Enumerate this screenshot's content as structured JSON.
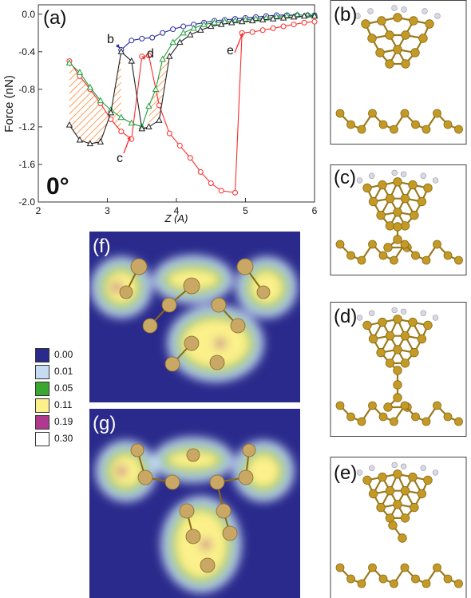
{
  "panel_labels": {
    "a": "(a)",
    "b": "(b)",
    "c": "(c)",
    "d": "(d)",
    "e": "(e)",
    "f": "(f)",
    "g": "(g)"
  },
  "angle_label": "0°",
  "point_labels": {
    "b": "b",
    "c": "c",
    "d": "d",
    "e": "e"
  },
  "chart_data": {
    "type": "line",
    "xlabel": "Z (A)",
    "ylabel": "Force (nN)",
    "xlim": [
      2,
      6
    ],
    "ylim": [
      -2.0,
      0.1
    ],
    "x_ticks": [
      "2",
      "3",
      "4",
      "5",
      "6"
    ],
    "y_ticks": [
      "0.0",
      "-0.4",
      "-0.8",
      "-1.2",
      "-1.6",
      "-2.0"
    ],
    "series": [
      {
        "color": "#2b2ba8",
        "marker": "circle",
        "x": [
          3.2,
          3.35,
          3.5,
          3.65,
          3.8,
          3.95,
          4.1,
          4.25,
          4.4,
          4.55,
          4.7,
          4.85,
          5.0,
          5.15,
          5.3,
          5.45,
          5.6,
          5.75,
          5.9,
          6.0
        ],
        "y": [
          -0.38,
          -0.28,
          -0.26,
          -0.25,
          -0.2,
          -0.16,
          -0.13,
          -0.11,
          -0.09,
          -0.07,
          -0.06,
          -0.05,
          -0.04,
          -0.03,
          -0.02,
          -0.01,
          -0.01,
          -0.01,
          -0.01,
          -0.01
        ]
      },
      {
        "color": "#ff2a2a",
        "marker": "circle",
        "x": [
          2.45,
          2.6,
          2.75,
          2.9,
          3.05,
          3.2,
          3.35,
          3.5,
          3.6,
          3.75,
          3.9,
          4.05,
          4.2,
          4.35,
          4.5,
          4.65,
          4.85,
          4.95,
          5.1,
          5.25,
          5.4,
          5.55,
          5.7,
          5.85,
          6.0
        ],
        "y": [
          -0.5,
          -0.66,
          -0.8,
          -0.95,
          -1.12,
          -1.25,
          -1.33,
          -0.45,
          -0.44,
          -0.97,
          -1.27,
          -1.4,
          -1.53,
          -1.68,
          -1.8,
          -1.88,
          -1.9,
          -0.2,
          -0.19,
          -0.17,
          -0.15,
          -0.13,
          -0.11,
          -0.09,
          -0.08
        ]
      },
      {
        "color": "#1e9e3c",
        "marker": "triangle",
        "x": [
          2.45,
          2.6,
          2.75,
          2.9,
          3.05,
          3.2,
          3.35,
          3.5,
          3.6,
          3.7,
          3.8,
          3.95,
          4.1,
          4.25,
          4.4,
          4.55,
          4.7,
          4.85,
          5.0,
          5.15,
          5.3,
          5.45,
          5.6,
          5.75,
          5.9,
          6.0
        ],
        "y": [
          -0.52,
          -0.62,
          -0.78,
          -0.92,
          -1.02,
          -1.1,
          -1.16,
          -1.2,
          -0.98,
          -0.8,
          -0.48,
          -0.3,
          -0.2,
          -0.15,
          -0.11,
          -0.09,
          -0.08,
          -0.07,
          -0.06,
          -0.05,
          -0.04,
          -0.03,
          -0.02,
          -0.01,
          -0.01,
          -0.01
        ]
      },
      {
        "color": "#222222",
        "marker": "triangle",
        "x": [
          2.45,
          2.6,
          2.75,
          2.9,
          3.05,
          3.2,
          3.35,
          3.5,
          3.6,
          3.75,
          3.9,
          4.05,
          4.2,
          4.35,
          4.5,
          4.65,
          4.8,
          4.95,
          5.1,
          5.25,
          5.4,
          5.55,
          5.7,
          5.85,
          6.0
        ],
        "y": [
          -1.18,
          -1.34,
          -1.38,
          -1.36,
          -1.05,
          -0.4,
          -0.5,
          -1.22,
          -1.2,
          -1.13,
          -0.45,
          -0.3,
          -0.22,
          -0.17,
          -0.13,
          -0.11,
          -0.09,
          -0.08,
          -0.07,
          -0.06,
          -0.05,
          -0.04,
          -0.03,
          -0.02,
          -0.02
        ]
      }
    ]
  },
  "legend": [
    {
      "value": "0.00",
      "color": "#2a2a8c"
    },
    {
      "value": "0.01",
      "color": "#c6dcf2"
    },
    {
      "value": "0.05",
      "color": "#3aa830"
    },
    {
      "value": "0.11",
      "color": "#fbf08a"
    },
    {
      "value": "0.19",
      "color": "#b0388e"
    },
    {
      "value": "0.30",
      "color": "#ffffff"
    }
  ]
}
